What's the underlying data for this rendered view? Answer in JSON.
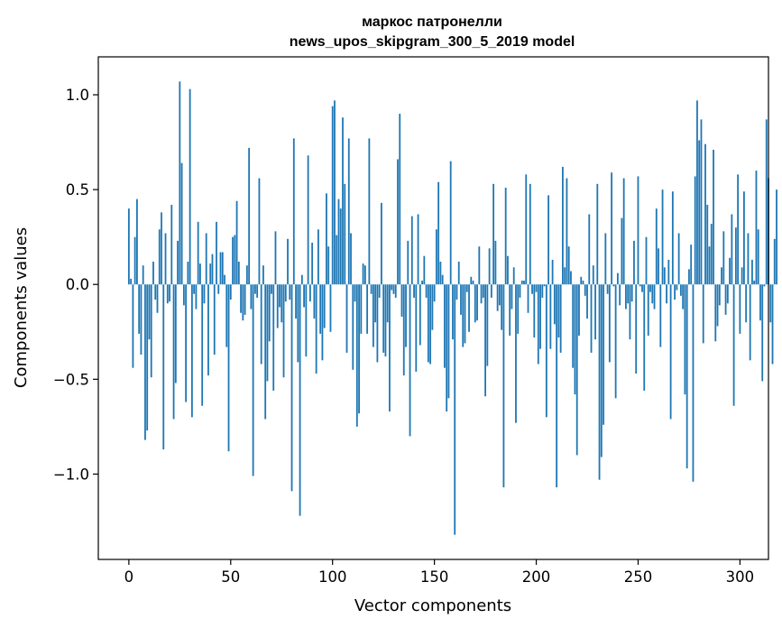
{
  "chart_data": {
    "type": "bar",
    "title_lines": [
      "маркос патронелли",
      "news_upos_skipgram_300_5_2019 model"
    ],
    "xlabel": "Vector components",
    "ylabel": "Components values",
    "xlim": [
      -15,
      314
    ],
    "ylim": [
      -1.45,
      1.2
    ],
    "xticks": [
      0,
      50,
      100,
      150,
      200,
      250,
      300
    ],
    "yticks": [
      1.0,
      0.5,
      0.0,
      -0.5,
      -1.0
    ],
    "ytick_labels": [
      "1.0",
      "0.5",
      "0.0",
      "−0.5",
      "−1.0"
    ],
    "bar_color": "#1f77b4",
    "values": [
      0.4,
      0.03,
      -0.44,
      0.25,
      0.45,
      -0.26,
      -0.37,
      0.1,
      -0.82,
      -0.77,
      -0.29,
      -0.49,
      0.12,
      -0.08,
      -0.15,
      0.29,
      0.38,
      -0.87,
      0.27,
      -0.1,
      -0.09,
      0.42,
      -0.71,
      -0.52,
      0.23,
      1.07,
      0.64,
      -0.11,
      -0.62,
      0.12,
      1.03,
      -0.7,
      -0.05,
      -0.13,
      0.33,
      0.11,
      -0.64,
      -0.1,
      0.27,
      -0.48,
      0.11,
      0.16,
      -0.37,
      0.33,
      -0.05,
      0.17,
      0.17,
      0.05,
      -0.33,
      -0.88,
      -0.08,
      0.25,
      0.26,
      0.44,
      0.12,
      -0.15,
      -0.19,
      -0.16,
      0.1,
      0.72,
      -0.13,
      -1.01,
      -0.05,
      -0.07,
      0.56,
      -0.42,
      0.1,
      -0.71,
      -0.51,
      -0.3,
      -0.05,
      -0.56,
      0.28,
      -0.23,
      -0.12,
      -0.2,
      -0.49,
      -0.09,
      0.24,
      -0.08,
      -1.09,
      0.77,
      -0.18,
      -0.41,
      -1.22,
      0.05,
      -0.12,
      -0.38,
      0.68,
      -0.09,
      0.22,
      -0.18,
      -0.47,
      0.29,
      -0.26,
      -0.4,
      -0.23,
      0.48,
      0.2,
      -0.25,
      0.94,
      0.97,
      0.26,
      0.45,
      0.4,
      0.88,
      0.53,
      -0.36,
      0.77,
      0.27,
      -0.45,
      -0.09,
      -0.75,
      -0.68,
      -0.26,
      0.11,
      0.1,
      -0.26,
      0.77,
      -0.05,
      -0.33,
      -0.2,
      -0.41,
      -0.07,
      0.43,
      -0.36,
      -0.38,
      -0.2,
      -0.67,
      -0.03,
      -0.05,
      -0.07,
      0.66,
      0.9,
      -0.17,
      -0.48,
      -0.33,
      0.23,
      -0.8,
      0.36,
      -0.07,
      -0.46,
      0.37,
      -0.32,
      0.02,
      0.15,
      -0.07,
      -0.41,
      -0.42,
      -0.24,
      -0.09,
      0.29,
      0.54,
      0.12,
      0.05,
      -0.44,
      -0.67,
      -0.6,
      0.65,
      -0.29,
      -1.32,
      -0.08,
      0.12,
      -0.16,
      -0.33,
      -0.31,
      -0.04,
      -0.25,
      0.04,
      0.02,
      -0.2,
      -0.19,
      0.2,
      -0.1,
      -0.07,
      -0.59,
      -0.43,
      0.19,
      -0.07,
      0.53,
      0.23,
      -0.14,
      -0.11,
      -0.24,
      -1.07,
      0.51,
      0.15,
      -0.27,
      -0.13,
      0.09,
      -0.73,
      -0.26,
      -0.07,
      0.02,
      0.02,
      0.58,
      -0.15,
      0.53,
      -0.05,
      -0.28,
      -0.04,
      -0.42,
      -0.34,
      -0.07,
      -0.01,
      -0.7,
      0.47,
      -0.34,
      0.13,
      -0.21,
      -1.07,
      -0.28,
      -0.36,
      0.62,
      0.09,
      0.56,
      0.2,
      0.07,
      -0.44,
      -0.58,
      -0.9,
      -0.27,
      0.04,
      0.02,
      -0.06,
      -0.18,
      0.37,
      -0.36,
      0.1,
      -0.29,
      0.53,
      -1.03,
      -0.91,
      -0.74,
      0.27,
      -0.05,
      -0.41,
      0.59,
      -0.01,
      -0.6,
      0.06,
      -0.11,
      0.35,
      0.56,
      -0.13,
      -0.1,
      -0.29,
      -0.09,
      0.23,
      -0.47,
      0.57,
      -0.01,
      -0.04,
      -0.56,
      0.25,
      -0.27,
      -0.04,
      -0.1,
      -0.13,
      0.4,
      0.19,
      -0.33,
      0.5,
      0.09,
      -0.1,
      0.13,
      -0.71,
      0.49,
      -0.08,
      -0.03,
      0.27,
      -0.06,
      -0.13,
      -0.58,
      -0.97,
      0.08,
      0.21,
      -1.04,
      0.57,
      0.97,
      0.76,
      0.87,
      -0.31,
      0.74,
      0.42,
      0.2,
      0.32,
      0.71,
      -0.3,
      -0.22,
      -0.11,
      0.09,
      0.28,
      -0.16,
      -0.1,
      0.14,
      0.37,
      -0.64,
      0.3,
      0.58,
      -0.26,
      0.09,
      0.49,
      -0.2,
      0.27,
      -0.4,
      0.13,
      0.02,
      0.6,
      0.29,
      -0.19,
      -0.51,
      -0.01,
      0.87,
      0.56,
      -0.2,
      -0.42,
      0.24,
      0.5
    ]
  }
}
